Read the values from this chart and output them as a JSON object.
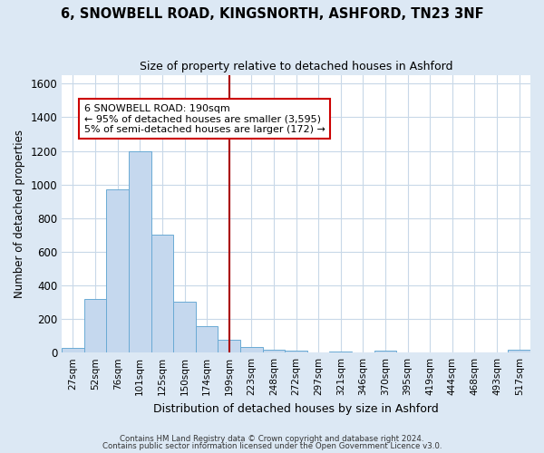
{
  "title_line1": "6, SNOWBELL ROAD, KINGSNORTH, ASHFORD, TN23 3NF",
  "title_line2": "Size of property relative to detached houses in Ashford",
  "xlabel": "Distribution of detached houses by size in Ashford",
  "ylabel": "Number of detached properties",
  "categories": [
    "27sqm",
    "52sqm",
    "76sqm",
    "101sqm",
    "125sqm",
    "150sqm",
    "174sqm",
    "199sqm",
    "223sqm",
    "248sqm",
    "272sqm",
    "297sqm",
    "321sqm",
    "346sqm",
    "370sqm",
    "395sqm",
    "419sqm",
    "444sqm",
    "468sqm",
    "493sqm",
    "517sqm"
  ],
  "values": [
    30,
    320,
    970,
    1200,
    700,
    305,
    155,
    75,
    35,
    15,
    10,
    0,
    5,
    0,
    10,
    0,
    0,
    0,
    0,
    0,
    15
  ],
  "bar_color": "#c5d8ee",
  "bar_edge_color": "#6aaad4",
  "bar_width": 1.0,
  "vline_x": 7.0,
  "vline_color": "#aa0000",
  "annotation_line1": "6 SNOWBELL ROAD: 190sqm",
  "annotation_line2": "← 95% of detached houses are smaller (3,595)",
  "annotation_line3": "5% of semi-detached houses are larger (172) →",
  "annotation_box_color": "#ffffff",
  "annotation_box_edge_color": "#cc0000",
  "ylim": [
    0,
    1650
  ],
  "yticks": [
    0,
    200,
    400,
    600,
    800,
    1000,
    1200,
    1400,
    1600
  ],
  "plot_bg_color": "#ffffff",
  "fig_bg_color": "#dce8f4",
  "grid_color": "#c8d8e8",
  "footer_line1": "Contains HM Land Registry data © Crown copyright and database right 2024.",
  "footer_line2": "Contains public sector information licensed under the Open Government Licence v3.0."
}
